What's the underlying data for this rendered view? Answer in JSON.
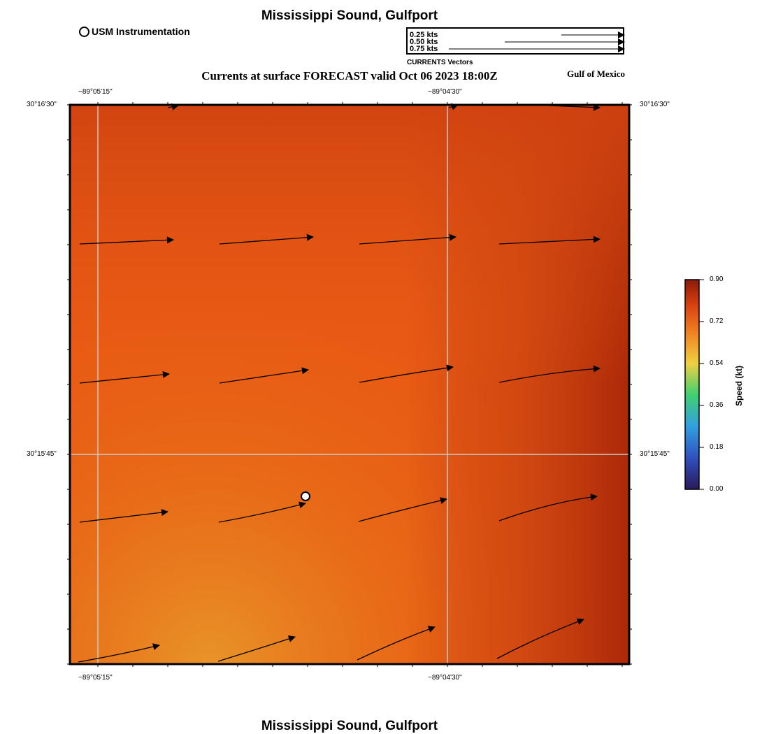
{
  "title": "Mississippi Sound, Gulfport",
  "bottom_title": "Mississippi Sound, Gulfport",
  "subtitle": "Currents at surface FORECAST valid Oct 06 2023 18:00Z",
  "region": "Gulf of Mexico",
  "station_legend": {
    "label": "USM Instrumentation",
    "icon": "circle-marker-icon"
  },
  "vector_legend": {
    "caption": "CURRENTS Vectors",
    "entries": [
      {
        "label": "0.25 kts",
        "speed": 0.25
      },
      {
        "label": "0.50 kts",
        "speed": 0.5
      },
      {
        "label": "0.75 kts",
        "speed": 0.75
      }
    ]
  },
  "axes": {
    "x_ticks_top": [
      "−89°05'15\"",
      "−89°04'30\""
    ],
    "x_ticks_bottom": [
      "−89°05'15\"",
      "−89°04'30\""
    ],
    "y_ticks_left": [
      "30°16'30\"",
      "30°15'45\""
    ],
    "y_ticks_right": [
      "30°16'30\"",
      "30°15'45\""
    ]
  },
  "colorbar": {
    "title": "Speed (kt)",
    "ticks": [
      "0.90",
      "0.72",
      "0.54",
      "0.36",
      "0.18",
      "0.00"
    ],
    "range": [
      0,
      0.9
    ],
    "colors": [
      "#8b1a0a",
      "#e05a10",
      "#f0d040",
      "#40d070",
      "#30a0e0",
      "#2a1a5a"
    ]
  },
  "map_colors": {
    "field_main": "#e85a14",
    "field_dark": "#b8300c",
    "field_light": "#e89428"
  },
  "grid": true,
  "station": {
    "name": "USM Instrumentation",
    "lon_label": "",
    "marker": "white circle"
  }
}
